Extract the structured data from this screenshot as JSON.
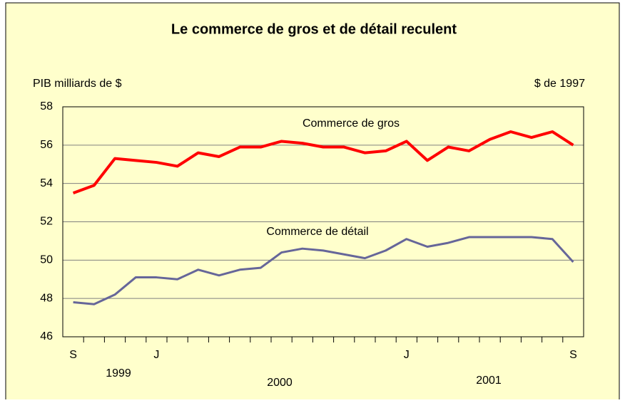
{
  "chart_data": {
    "type": "line",
    "title": "Le commerce de gros et de détail reculent",
    "y_label": "PIB milliards de $",
    "unit_note": "$ de 1997",
    "categories": [
      "S",
      null,
      null,
      null,
      "J",
      null,
      null,
      null,
      null,
      null,
      null,
      null,
      null,
      null,
      null,
      null,
      "J",
      null,
      null,
      null,
      null,
      null,
      null,
      null,
      "S"
    ],
    "year_labels": [
      "1999",
      "2000",
      "2001"
    ],
    "series": [
      {
        "name": "Commerce de gros",
        "color": "#ff0000",
        "values": [
          53.5,
          53.9,
          55.3,
          55.2,
          55.1,
          54.9,
          55.6,
          55.4,
          55.9,
          55.9,
          56.2,
          56.1,
          55.9,
          55.9,
          55.6,
          55.7,
          56.2,
          55.2,
          55.9,
          55.7,
          56.3,
          56.7,
          56.4,
          56.7,
          56.0
        ]
      },
      {
        "name": "Commerce de détail",
        "color": "#666699",
        "values": [
          47.8,
          47.7,
          48.2,
          49.1,
          49.1,
          49.0,
          49.5,
          49.2,
          49.5,
          49.6,
          50.4,
          50.6,
          50.5,
          50.3,
          50.1,
          50.5,
          51.1,
          50.7,
          50.9,
          51.2,
          51.2,
          51.2,
          51.2,
          51.1,
          49.9
        ]
      }
    ],
    "ylim": [
      46,
      58
    ],
    "yticks": [
      46,
      48,
      50,
      52,
      54,
      56,
      58
    ],
    "grid": true
  }
}
